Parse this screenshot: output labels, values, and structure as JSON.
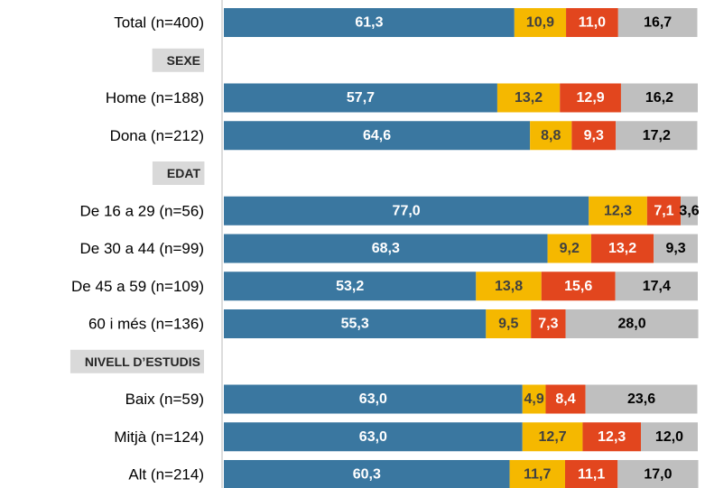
{
  "chart_data": {
    "type": "stacked-bar-horizontal",
    "categories": [
      "Total (n=400)",
      "SEXE",
      "Home (n=188)",
      "Dona (n=212)",
      "EDAT",
      "De 16 a 29 (n=56)",
      "De 30 a 44 (n=99)",
      "De 45 a 59 (n=109)",
      "60 i més (n=136)",
      "NIVELL D’ESTUDIS",
      "Baix (n=59)",
      "Mitjà (n=124)",
      "Alt (n=214)"
    ],
    "series": [
      {
        "color": "#3a77a0",
        "values": [
          61.3,
          null,
          57.7,
          64.6,
          null,
          77.0,
          68.3,
          53.2,
          55.3,
          null,
          63.0,
          63.0,
          60.3
        ],
        "value_labels": [
          "61,3",
          null,
          "57,7",
          "64,6",
          null,
          "77,0",
          "68,3",
          "53,2",
          "55,3",
          null,
          "63,0",
          "63,0",
          "60,3"
        ]
      },
      {
        "color": "#f5b800",
        "values": [
          10.9,
          null,
          13.2,
          8.8,
          null,
          12.3,
          9.2,
          13.8,
          9.5,
          null,
          4.9,
          12.7,
          11.7
        ],
        "value_labels": [
          "10,9",
          null,
          "13,2",
          "8,8",
          null,
          "12,3",
          "9,2",
          "13,8",
          "9,5",
          null,
          "4,9",
          "12,7",
          "11,7"
        ]
      },
      {
        "color": "#e2461e",
        "values": [
          11.0,
          null,
          12.9,
          9.3,
          null,
          7.1,
          13.2,
          15.6,
          7.3,
          null,
          8.4,
          12.3,
          11.1
        ],
        "value_labels": [
          "11,0",
          null,
          "12,9",
          "9,3",
          null,
          "7,1",
          "13,2",
          "15,6",
          "7,3",
          null,
          "8,4",
          "12,3",
          "11,1"
        ]
      },
      {
        "color": "#bfbfbf",
        "values": [
          16.7,
          null,
          16.2,
          17.2,
          null,
          3.6,
          9.3,
          17.4,
          28.0,
          null,
          23.6,
          12.0,
          17.0
        ],
        "value_labels": [
          "16,7",
          null,
          "16,2",
          "17,2",
          null,
          "3,6",
          "9,3",
          "17,4",
          "28,0",
          null,
          "23,6",
          "12,0",
          "17,0"
        ]
      }
    ],
    "xlim": [
      0,
      100
    ]
  }
}
